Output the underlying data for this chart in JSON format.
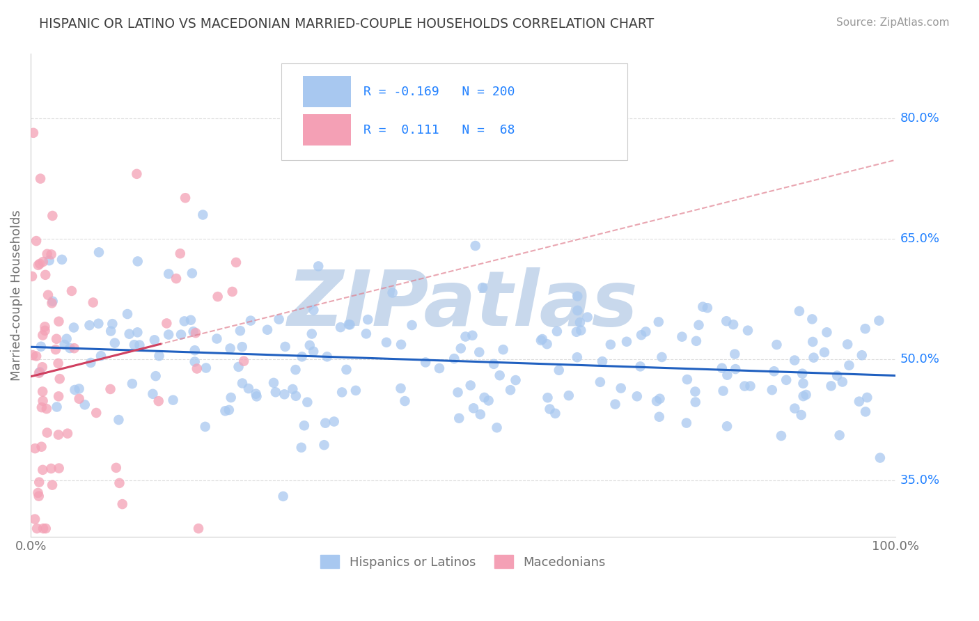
{
  "title": "HISPANIC OR LATINO VS MACEDONIAN MARRIED-COUPLE HOUSEHOLDS CORRELATION CHART",
  "source_text": "Source: ZipAtlas.com",
  "ylabel": "Married-couple Households",
  "xlim": [
    0.0,
    1.0
  ],
  "ylim": [
    0.28,
    0.88
  ],
  "yticks": [
    0.35,
    0.5,
    0.65,
    0.8
  ],
  "ytick_labels": [
    "35.0%",
    "50.0%",
    "65.0%",
    "80.0%"
  ],
  "xticks": [
    0.0,
    1.0
  ],
  "xtick_labels": [
    "0.0%",
    "100.0%"
  ],
  "blue_R": -0.169,
  "blue_N": 200,
  "pink_R": 0.111,
  "pink_N": 68,
  "blue_color": "#A8C8F0",
  "pink_color": "#F4A0B5",
  "blue_line_color": "#2060C0",
  "pink_line_color": "#D04060",
  "pink_dash_color": "#E08090",
  "watermark": "ZIPatlas",
  "watermark_color": "#C8D8EC",
  "legend_label_blue": "Hispanics or Latinos",
  "legend_label_pink": "Macedonians",
  "background_color": "#FFFFFF",
  "grid_color": "#DDDDDD",
  "title_color": "#404040",
  "axis_label_color": "#707070",
  "tick_color": "#2080FF",
  "blue_seed": 42,
  "pink_seed": 123
}
